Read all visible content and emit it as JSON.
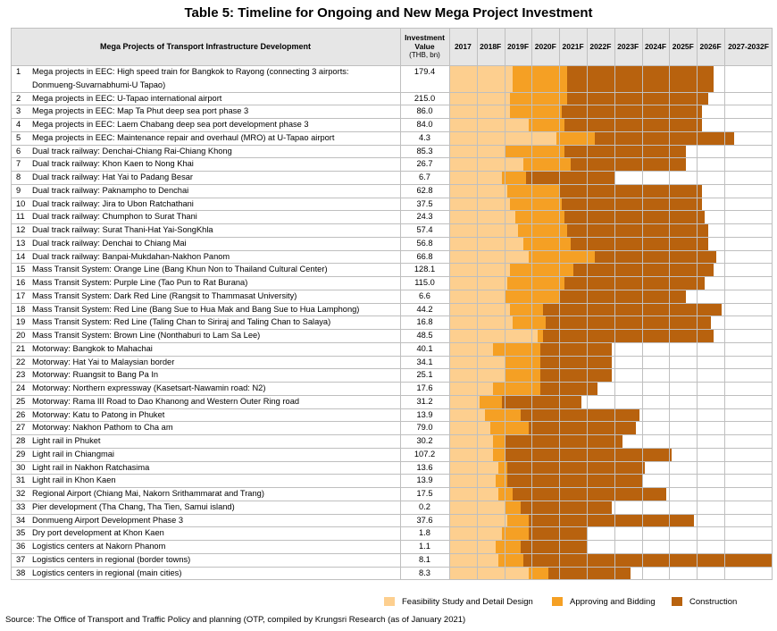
{
  "title": "Table 5: Timeline for Ongoing and New Mega Project Investment",
  "columns": {
    "project": "Mega Projects of Transport Infrastructure Development",
    "investment_line1": "Investment",
    "investment_line2": "Value",
    "investment_line3": "(THB, bn)",
    "years": [
      "2017",
      "2018F",
      "2019F",
      "2020F",
      "2021F",
      "2022F",
      "2023F",
      "2024F",
      "2025F",
      "2026F",
      "2027-2032F"
    ]
  },
  "colors": {
    "feasibility": "#fdcf8f",
    "approving": "#f5a024",
    "construction": "#b8620e",
    "grid": "#bfbfbf",
    "header_bg": "#e6e6e6"
  },
  "rows": [
    {
      "no": "1",
      "project": "Mega projects in EEC: High speed train for Bangkok to Rayong (connecting 3 airports:",
      "project2": "Donmueng-Suvarnabhumi-U Tapao)",
      "value": "179.4",
      "phases": [
        [
          0,
          2.3
        ],
        [
          2.3,
          4.3
        ],
        [
          4.3,
          9.6
        ]
      ]
    },
    {
      "no": "2",
      "project": "Mega projects in EEC: U-Tapao international airport",
      "value": "215.0",
      "phases": [
        [
          0,
          2.2
        ],
        [
          2.2,
          4.3
        ],
        [
          4.3,
          9.4
        ]
      ]
    },
    {
      "no": "3",
      "project": "Mega projects in EEC: Map Ta Phut deep sea port phase 3",
      "value": "86.0",
      "phases": [
        [
          0,
          2.2
        ],
        [
          2.2,
          4.1
        ],
        [
          4.1,
          9.2
        ]
      ]
    },
    {
      "no": "4",
      "project": "Mega projects in EEC: Laem Chabang deep sea port development phase 3",
      "value": "84.0",
      "phases": [
        [
          0,
          2.9
        ],
        [
          2.9,
          4.2
        ],
        [
          4.2,
          9.2
        ]
      ]
    },
    {
      "no": "5",
      "project": "Mega projects in EEC: Maintenance repair and overhaul (MRO) at U-Tapao airport",
      "value": "4.3",
      "phases": [
        [
          0,
          3.9
        ],
        [
          3.9,
          5.3
        ],
        [
          5.3,
          10.2
        ]
      ]
    },
    {
      "no": "6",
      "project": "Dual track railway: Denchai-Chiang Rai-Chiang Khong",
      "value": "85.3",
      "phases": [
        [
          0,
          2.0
        ],
        [
          2.0,
          4.2
        ],
        [
          4.2,
          8.6
        ]
      ]
    },
    {
      "no": "7",
      "project": "Dual track railway: Khon Kaen to Nong Khai",
      "value": "26.7",
      "phases": [
        [
          0,
          2.7
        ],
        [
          2.7,
          4.4
        ],
        [
          4.4,
          8.6
        ]
      ]
    },
    {
      "no": "8",
      "project": "Dual track railway: Hat Yai to Padang Besar",
      "value": "6.7",
      "phases": [
        [
          0,
          1.9
        ],
        [
          1.9,
          2.8
        ],
        [
          2.8,
          6.0
        ]
      ]
    },
    {
      "no": "9",
      "project": "Dual track railway: Paknampho to Denchai",
      "value": "62.8",
      "phases": [
        [
          0,
          2.1
        ],
        [
          2.1,
          4.0
        ],
        [
          4.0,
          9.2
        ]
      ]
    },
    {
      "no": "10",
      "project": "Dual track railway: Jira to Ubon Ratchathani",
      "value": "37.5",
      "phases": [
        [
          0,
          2.2
        ],
        [
          2.2,
          4.1
        ],
        [
          4.1,
          9.2
        ]
      ]
    },
    {
      "no": "11",
      "project": "Dual track railway: Chumphon to Surat Thani",
      "value": "24.3",
      "phases": [
        [
          0,
          2.4
        ],
        [
          2.4,
          4.2
        ],
        [
          4.2,
          9.3
        ]
      ]
    },
    {
      "no": "12",
      "project": "Dual track railway: Surat Thani-Hat Yai-SongKhla",
      "value": "57.4",
      "phases": [
        [
          0,
          2.5
        ],
        [
          2.5,
          4.3
        ],
        [
          4.3,
          9.4
        ]
      ]
    },
    {
      "no": "13",
      "project": "Dual track railway: Denchai to Chiang Mai",
      "value": "56.8",
      "phases": [
        [
          0,
          2.7
        ],
        [
          2.7,
          4.4
        ],
        [
          4.4,
          9.4
        ]
      ]
    },
    {
      "no": "14",
      "project": "Dual track railway: Banpai-Mukdahan-Nakhon Panom",
      "value": "66.8",
      "phases": [
        [
          0,
          2.9
        ],
        [
          2.9,
          5.3
        ],
        [
          5.3,
          9.7
        ]
      ]
    },
    {
      "no": "15",
      "project": "Mass Transit System: Orange Line (Bang Khun Non to Thailand Cultural Center)",
      "value": "128.1",
      "phases": [
        [
          0,
          2.2
        ],
        [
          2.2,
          4.5
        ],
        [
          4.5,
          9.6
        ]
      ]
    },
    {
      "no": "16",
      "project": "Mass Transit System: Purple Line (Tao Pun to Rat Burana)",
      "value": "115.0",
      "phases": [
        [
          0,
          2.1
        ],
        [
          2.1,
          4.2
        ],
        [
          4.2,
          9.3
        ]
      ]
    },
    {
      "no": "17",
      "project": "Mass Transit System: Dark Red Line (Rangsit to Thammasat University)",
      "value": "6.6",
      "phases": [
        [
          0,
          2.0
        ],
        [
          2.0,
          4.0
        ],
        [
          4.0,
          8.6
        ]
      ]
    },
    {
      "no": "18",
      "project": "Mass Transit System: Red Line (Bang Sue to Hua Mak and Bang Sue to Hua Lamphong)",
      "value": "44.2",
      "phases": [
        [
          0,
          2.2
        ],
        [
          2.2,
          3.4
        ],
        [
          3.4,
          9.9
        ]
      ]
    },
    {
      "no": "19",
      "project": "Mass Transit System: Red Line (Taling Chan to Siriraj and Taling Chan to Salaya)",
      "value": "16.8",
      "phases": [
        [
          0,
          2.3
        ],
        [
          2.3,
          3.5
        ],
        [
          3.5,
          9.5
        ]
      ]
    },
    {
      "no": "20",
      "project": "Mass Transit System: Brown Line (Nonthaburi to Lam Sa Lee)",
      "value": "48.5",
      "phases": [
        [
          0,
          3.2
        ],
        [
          3.2,
          3.4
        ],
        [
          3.4,
          9.6
        ]
      ]
    },
    {
      "no": "21",
      "project": "Motorway: Bangkok to Mahachai",
      "value": "40.1",
      "phases": [
        [
          0,
          1.6
        ],
        [
          1.6,
          3.3
        ],
        [
          3.3,
          5.9
        ]
      ]
    },
    {
      "no": "22",
      "project": "Motorway: Hat Yai to Malaysian border",
      "value": "34.1",
      "phases": [
        [
          0,
          2.0
        ],
        [
          2.0,
          3.3
        ],
        [
          3.3,
          5.9
        ]
      ]
    },
    {
      "no": "23",
      "project": "Motorway: Ruangsit to Bang Pa In",
      "value": "25.1",
      "phases": [
        [
          0,
          2.0
        ],
        [
          2.0,
          3.3
        ],
        [
          3.3,
          5.9
        ]
      ]
    },
    {
      "no": "24",
      "project": "Motorway: Northern expressway (Kasetsart-Nawamin road: N2)",
      "value": "17.6",
      "phases": [
        [
          0,
          1.6
        ],
        [
          1.6,
          3.3
        ],
        [
          3.3,
          5.4
        ]
      ]
    },
    {
      "no": "25",
      "project": "Motorway: Rama III Road to Dao Khanong and Western Outer Ring road",
      "value": "31.2",
      "phases": [
        [
          0,
          1.1
        ],
        [
          1.1,
          1.9
        ],
        [
          1.9,
          4.8
        ]
      ]
    },
    {
      "no": "26",
      "project": "Motorway: Katu to Patong in Phuket",
      "value": "13.9",
      "phases": [
        [
          0,
          1.3
        ],
        [
          1.3,
          2.6
        ],
        [
          2.6,
          6.9
        ]
      ]
    },
    {
      "no": "27",
      "project": "Motorway: Nakhon Pathom to Cha am",
      "value": "79.0",
      "phases": [
        [
          0,
          1.5
        ],
        [
          1.5,
          2.9
        ],
        [
          2.9,
          6.8
        ]
      ]
    },
    {
      "no": "28",
      "project": "Light rail in Phuket",
      "value": "30.2",
      "phases": [
        [
          0,
          1.6
        ],
        [
          1.6,
          2.0
        ],
        [
          2.0,
          6.3
        ]
      ]
    },
    {
      "no": "29",
      "project": "Light rail in Chiangmai",
      "value": "107.2",
      "phases": [
        [
          0,
          1.6
        ],
        [
          1.6,
          2.0
        ],
        [
          2.0,
          8.1
        ]
      ]
    },
    {
      "no": "30",
      "project": "Light rail in Nakhon Ratchasima",
      "value": "13.6",
      "phases": [
        [
          0,
          1.8
        ],
        [
          1.8,
          2.1
        ],
        [
          2.1,
          7.1
        ]
      ]
    },
    {
      "no": "31",
      "project": "Light rail in Khon Kaen",
      "value": "13.9",
      "phases": [
        [
          0,
          1.7
        ],
        [
          1.7,
          2.1
        ],
        [
          2.1,
          7.0
        ]
      ]
    },
    {
      "no": "32",
      "project": "Regional Airport (Chiang Mai, Nakorn Srithammarat and Trang)",
      "value": "17.5",
      "phases": [
        [
          0,
          1.8
        ],
        [
          1.8,
          2.3
        ],
        [
          2.3,
          7.9
        ]
      ]
    },
    {
      "no": "33",
      "project": "Pier development (Tha Chang, Tha Tien, Samui island)",
      "value": "0.2",
      "phases": [
        [
          0,
          2.0
        ],
        [
          2.0,
          2.6
        ],
        [
          2.6,
          5.9
        ]
      ]
    },
    {
      "no": "34",
      "project": "Donmueng Airport Development Phase 3",
      "value": "37.6",
      "phases": [
        [
          0,
          2.1
        ],
        [
          2.1,
          2.9
        ],
        [
          2.9,
          8.9
        ]
      ]
    },
    {
      "no": "35",
      "project": "Dry port development at Khon Kaen",
      "value": "1.8",
      "phases": [
        [
          0,
          1.9
        ],
        [
          1.9,
          2.9
        ],
        [
          2.9,
          5.0
        ]
      ]
    },
    {
      "no": "36",
      "project": "Logistics centers at Nakorn Phanom",
      "value": "1.1",
      "phases": [
        [
          0,
          1.7
        ],
        [
          1.7,
          2.6
        ],
        [
          2.6,
          5.0
        ]
      ]
    },
    {
      "no": "37",
      "project": "Logistics centers in regional (border towns)",
      "value": "8.1",
      "phases": [
        [
          0,
          1.8
        ],
        [
          1.8,
          2.7
        ],
        [
          2.7,
          11.0
        ]
      ]
    },
    {
      "no": "38",
      "project": "Logistics centers in regional (main cities)",
      "value": "8.3",
      "phases": [
        [
          0,
          2.9
        ],
        [
          2.9,
          3.6
        ],
        [
          3.6,
          6.6
        ]
      ]
    }
  ],
  "legend": [
    {
      "label": "Feasibility Study and Detail Design",
      "color": "#fdcf8f"
    },
    {
      "label": "Approving and Bidding",
      "color": "#f5a024"
    },
    {
      "label": "Construction",
      "color": "#b8620e"
    }
  ],
  "source": "Source: The Office of Transport and Traffic Policy and planning (OTP, compiled by Krungsri Research (as of January 2021)"
}
